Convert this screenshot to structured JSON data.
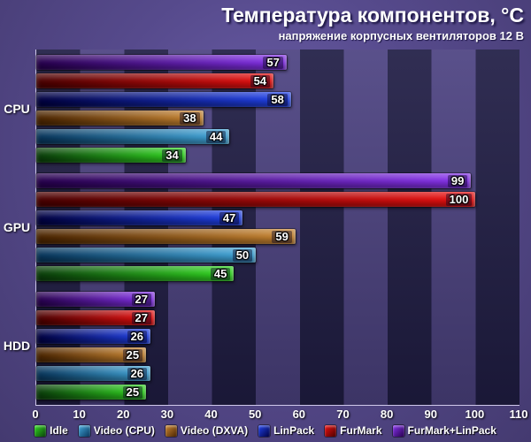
{
  "title": "Температура компонентов, °C",
  "subtitle": "напряжение корпусных вентиляторов 12 В",
  "chart_data": {
    "type": "bar",
    "orientation": "horizontal",
    "title": "Температура компонентов, °C",
    "subtitle": "напряжение корпусных вентиляторов 12 В",
    "categories": [
      "CPU",
      "GPU",
      "HDD"
    ],
    "series": [
      {
        "name": "Idle",
        "color_start": "#0a3d0a",
        "color_end": "#33dd22",
        "values": [
          34,
          45,
          25
        ]
      },
      {
        "name": "Video (CPU)",
        "color_start": "#07345a",
        "color_end": "#44aadd",
        "values": [
          44,
          50,
          26
        ]
      },
      {
        "name": "Video (DXVA)",
        "color_start": "#4a2400",
        "color_end": "#cc8833",
        "values": [
          38,
          59,
          25
        ]
      },
      {
        "name": "LinPack",
        "color_start": "#000040",
        "color_end": "#2244ee",
        "values": [
          58,
          47,
          26
        ]
      },
      {
        "name": "FurMark",
        "color_start": "#4a0000",
        "color_end": "#ee1111",
        "values": [
          54,
          100,
          27
        ]
      },
      {
        "name": "FurMark+LinPack",
        "color_start": "#26004d",
        "color_end": "#8833ee",
        "values": [
          57,
          99,
          27
        ]
      }
    ],
    "bar_order_top_to_bottom": [
      "FurMark+LinPack",
      "FurMark",
      "LinPack",
      "Video (DXVA)",
      "Video (CPU)",
      "Idle"
    ],
    "xlim": [
      0,
      110
    ],
    "x_ticks": [
      0,
      10,
      20,
      30,
      40,
      50,
      60,
      70,
      80,
      90,
      100,
      110
    ],
    "grid": "vertical-bands",
    "legend_position": "bottom"
  }
}
